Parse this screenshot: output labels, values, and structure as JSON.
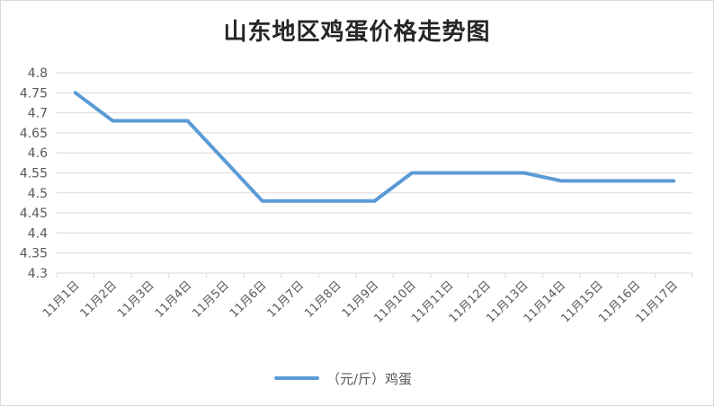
{
  "chart_data": {
    "type": "line",
    "title": "山东地区鸡蛋价格走势图",
    "xlabel": "",
    "ylabel": "",
    "categories": [
      "11月1日",
      "11月2日",
      "11月3日",
      "11月4日",
      "11月5日",
      "11月6日",
      "11月7日",
      "11月8日",
      "11月9日",
      "11月10日",
      "11月11日",
      "11月12日",
      "11月13日",
      "11月14日",
      "11月15日",
      "11月16日",
      "11月17日"
    ],
    "series": [
      {
        "name": "（元/斤）鸡蛋",
        "color": "#5B9BD5",
        "values": [
          4.75,
          4.68,
          4.68,
          4.68,
          4.58,
          4.48,
          4.48,
          4.48,
          4.48,
          4.55,
          4.55,
          4.55,
          4.55,
          4.53,
          4.53,
          4.53,
          4.53
        ]
      }
    ],
    "ylim": [
      4.3,
      4.8
    ],
    "yticks": [
      "4.3",
      "4.35",
      "4.4",
      "4.45",
      "4.5",
      "4.55",
      "4.6",
      "4.65",
      "4.7",
      "4.75",
      "4.8"
    ],
    "grid": true,
    "legend_position": "bottom"
  }
}
